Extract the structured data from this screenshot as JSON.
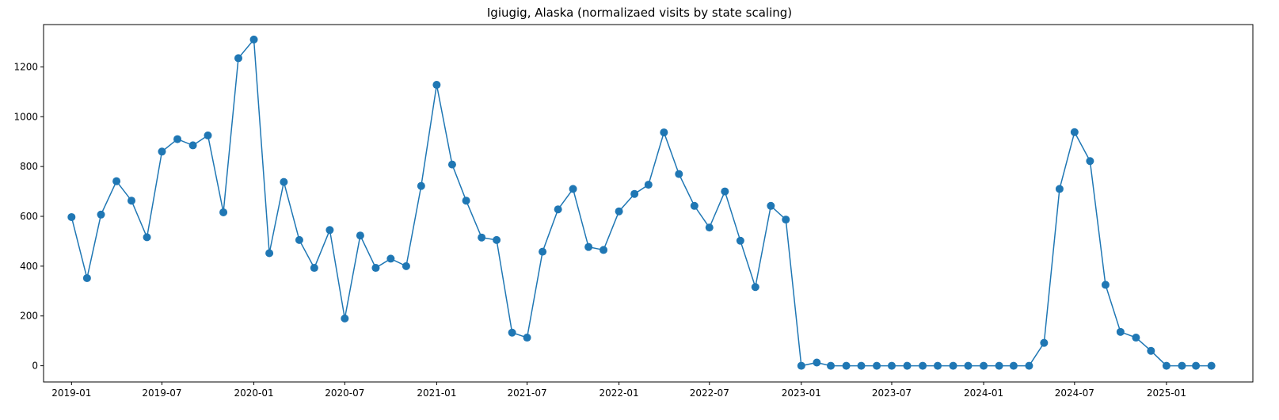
{
  "chart_data": {
    "type": "line",
    "title": "Igiugig, Alaska (normalizaed visits by state scaling)",
    "xlabel": "",
    "ylabel": "",
    "x_ticks": [
      "2019-01",
      "2019-07",
      "2020-01",
      "2020-07",
      "2021-01",
      "2021-07",
      "2022-01",
      "2022-07",
      "2023-01",
      "2023-07",
      "2024-01",
      "2024-07",
      "2025-01"
    ],
    "y_ticks": [
      0,
      200,
      400,
      600,
      800,
      1000,
      1200
    ],
    "xlim": [
      "2018-11-06",
      "2025-06-23"
    ],
    "ylim": [
      -65,
      1370
    ],
    "grid": false,
    "marker": "circle",
    "color": "#1f77b4",
    "series": [
      {
        "x": [
          "2019-01",
          "2019-02",
          "2019-03",
          "2019-04",
          "2019-05",
          "2019-06",
          "2019-07",
          "2019-08",
          "2019-09",
          "2019-10",
          "2019-11",
          "2019-12",
          "2020-01",
          "2020-02",
          "2020-03",
          "2020-04",
          "2020-05",
          "2020-06",
          "2020-07",
          "2020-08",
          "2020-09",
          "2020-10",
          "2020-11",
          "2020-12",
          "2021-01",
          "2021-02",
          "2021-03",
          "2021-04",
          "2021-05",
          "2021-06",
          "2021-07",
          "2021-08",
          "2021-09",
          "2021-10",
          "2021-11",
          "2021-12",
          "2022-01",
          "2022-02",
          "2022-03",
          "2022-04",
          "2022-05",
          "2022-06",
          "2022-07",
          "2022-08",
          "2022-09",
          "2022-10",
          "2022-11",
          "2022-12",
          "2023-01",
          "2023-02",
          "2023-03",
          "2023-04",
          "2023-05",
          "2023-06",
          "2023-07",
          "2023-08",
          "2023-09",
          "2023-10",
          "2023-11",
          "2023-12",
          "2024-01",
          "2024-02",
          "2024-03",
          "2024-04",
          "2024-05",
          "2024-06",
          "2024-07",
          "2024-08",
          "2024-09",
          "2024-10",
          "2024-11",
          "2024-12",
          "2025-01",
          "2025-02",
          "2025-03",
          "2025-04"
        ],
        "y": [
          597,
          352,
          607,
          741,
          663,
          516,
          860,
          910,
          885,
          925,
          616,
          1235,
          1310,
          452,
          738,
          505,
          393,
          545,
          190,
          523,
          393,
          430,
          400,
          722,
          1128,
          808,
          663,
          515,
          505,
          133,
          113,
          458,
          628,
          710,
          477,
          465,
          620,
          690,
          727,
          937,
          770,
          642,
          555,
          700,
          502,
          316,
          642,
          587,
          0,
          13,
          0,
          0,
          0,
          0,
          0,
          0,
          0,
          0,
          0,
          0,
          0,
          0,
          0,
          0,
          92,
          710,
          938,
          822,
          325,
          136,
          113,
          60,
          0,
          0,
          0,
          0
        ]
      }
    ]
  }
}
